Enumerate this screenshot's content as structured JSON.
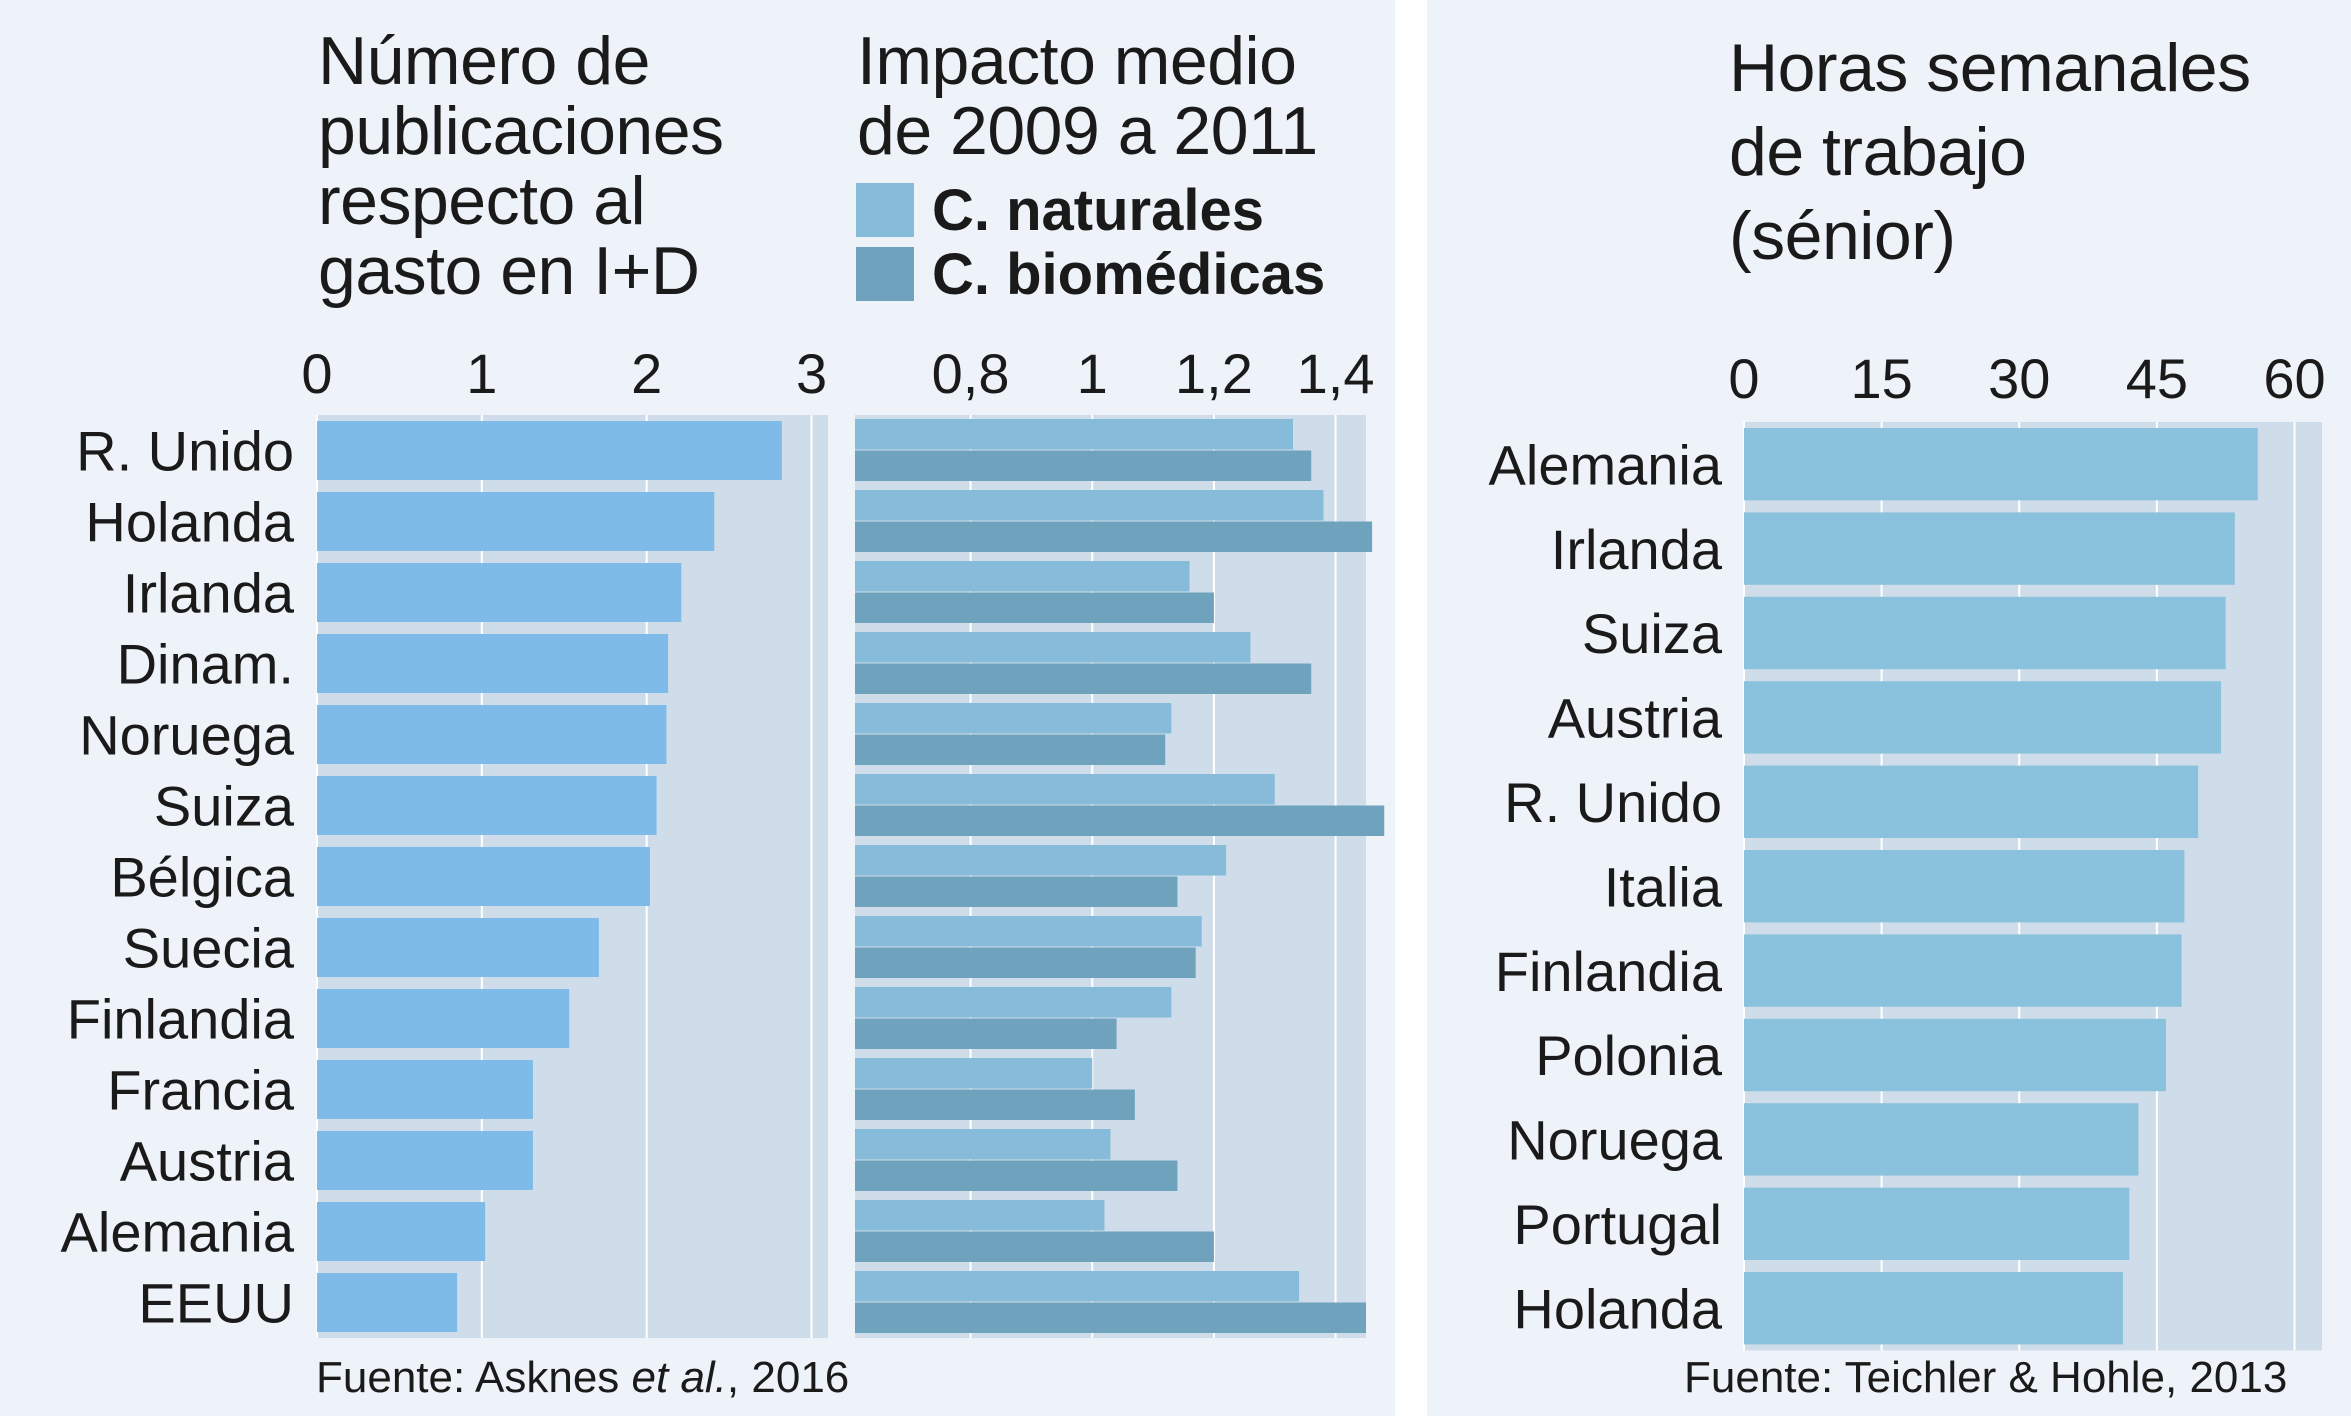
{
  "colors": {
    "panel_bg": "#edf3f8",
    "plot_bg": "#cfdce9",
    "bar_pubs": "#7fbbe9",
    "bar_natural": "#86bcd9",
    "bar_biomed": "#6fa2bd",
    "bar_hours": "#8ac2dd",
    "gridline": "#ffffff",
    "text": "#1a1a1a"
  },
  "legend": {
    "natural": "C. naturales",
    "biomed": "C. biomédicas"
  },
  "sources": {
    "left_prefix": "Fuente: Asknes ",
    "left_italic": "et al.",
    "left_suffix": ", 2016",
    "right": "Fuente: Teichler & Hohle, 2013"
  },
  "chart_data": [
    {
      "type": "bar",
      "orientation": "horizontal",
      "title": "Número de publicaciones respecto al gasto en I+D",
      "title_lines": [
        "Número de",
        "publicaciones",
        "respecto al",
        "gasto en I+D"
      ],
      "categories": [
        "R. Unido",
        "Holanda",
        "Irlanda",
        "Dinam.",
        "Noruega",
        "Suiza",
        "Bélgica",
        "Suecia",
        "Finlandia",
        "Francia",
        "Austria",
        "Alemania",
        "EEUU"
      ],
      "values": [
        2.82,
        2.41,
        2.21,
        2.13,
        2.12,
        2.06,
        2.02,
        1.71,
        1.53,
        1.31,
        1.31,
        1.02,
        0.85
      ],
      "xlim": [
        0,
        3.1
      ],
      "ticks": [
        0,
        1,
        2,
        3
      ],
      "tick_labels": [
        "0",
        "1",
        "2",
        "3"
      ],
      "grid": true
    },
    {
      "type": "bar",
      "orientation": "horizontal",
      "title": "Impacto medio de 2009 a 2011",
      "title_lines": [
        "Impacto medio",
        "de 2009 a 2011"
      ],
      "categories": [
        "R. Unido",
        "Holanda",
        "Irlanda",
        "Dinam.",
        "Noruega",
        "Suiza",
        "Bélgica",
        "Suecia",
        "Finlandia",
        "Francia",
        "Austria",
        "Alemania",
        "EEUU"
      ],
      "series": [
        {
          "name": "C. naturales",
          "values": [
            1.33,
            1.38,
            1.16,
            1.26,
            1.13,
            1.3,
            1.22,
            1.18,
            1.13,
            1.0,
            1.03,
            1.02,
            1.34
          ]
        },
        {
          "name": "C. biomédicas",
          "values": [
            1.36,
            1.46,
            1.2,
            1.36,
            1.12,
            1.48,
            1.14,
            1.17,
            1.04,
            1.07,
            1.14,
            1.2,
            1.45
          ]
        }
      ],
      "xlim": [
        0.61,
        1.45
      ],
      "ticks": [
        0.8,
        1.0,
        1.2,
        1.4
      ],
      "tick_labels": [
        "0,8",
        "1",
        "1,2",
        "1,4"
      ],
      "grid": true
    },
    {
      "type": "bar",
      "orientation": "horizontal",
      "title": "Horas semanales de trabajo (sénior)",
      "title_lines": [
        "Horas semanales",
        "de trabajo",
        "(sénior)"
      ],
      "categories": [
        "Alemania",
        "Irlanda",
        "Suiza",
        "Austria",
        "R. Unido",
        "Italia",
        "Finlandia",
        "Polonia",
        "Noruega",
        "Portugal",
        "Holanda"
      ],
      "values": [
        56,
        53.5,
        52.5,
        52,
        49.5,
        48,
        47.7,
        46,
        43,
        42,
        41.3
      ],
      "xlim": [
        0,
        63
      ],
      "ticks": [
        0,
        15,
        30,
        45,
        60
      ],
      "tick_labels": [
        "0",
        "15",
        "30",
        "45",
        "60"
      ],
      "grid": true
    }
  ]
}
